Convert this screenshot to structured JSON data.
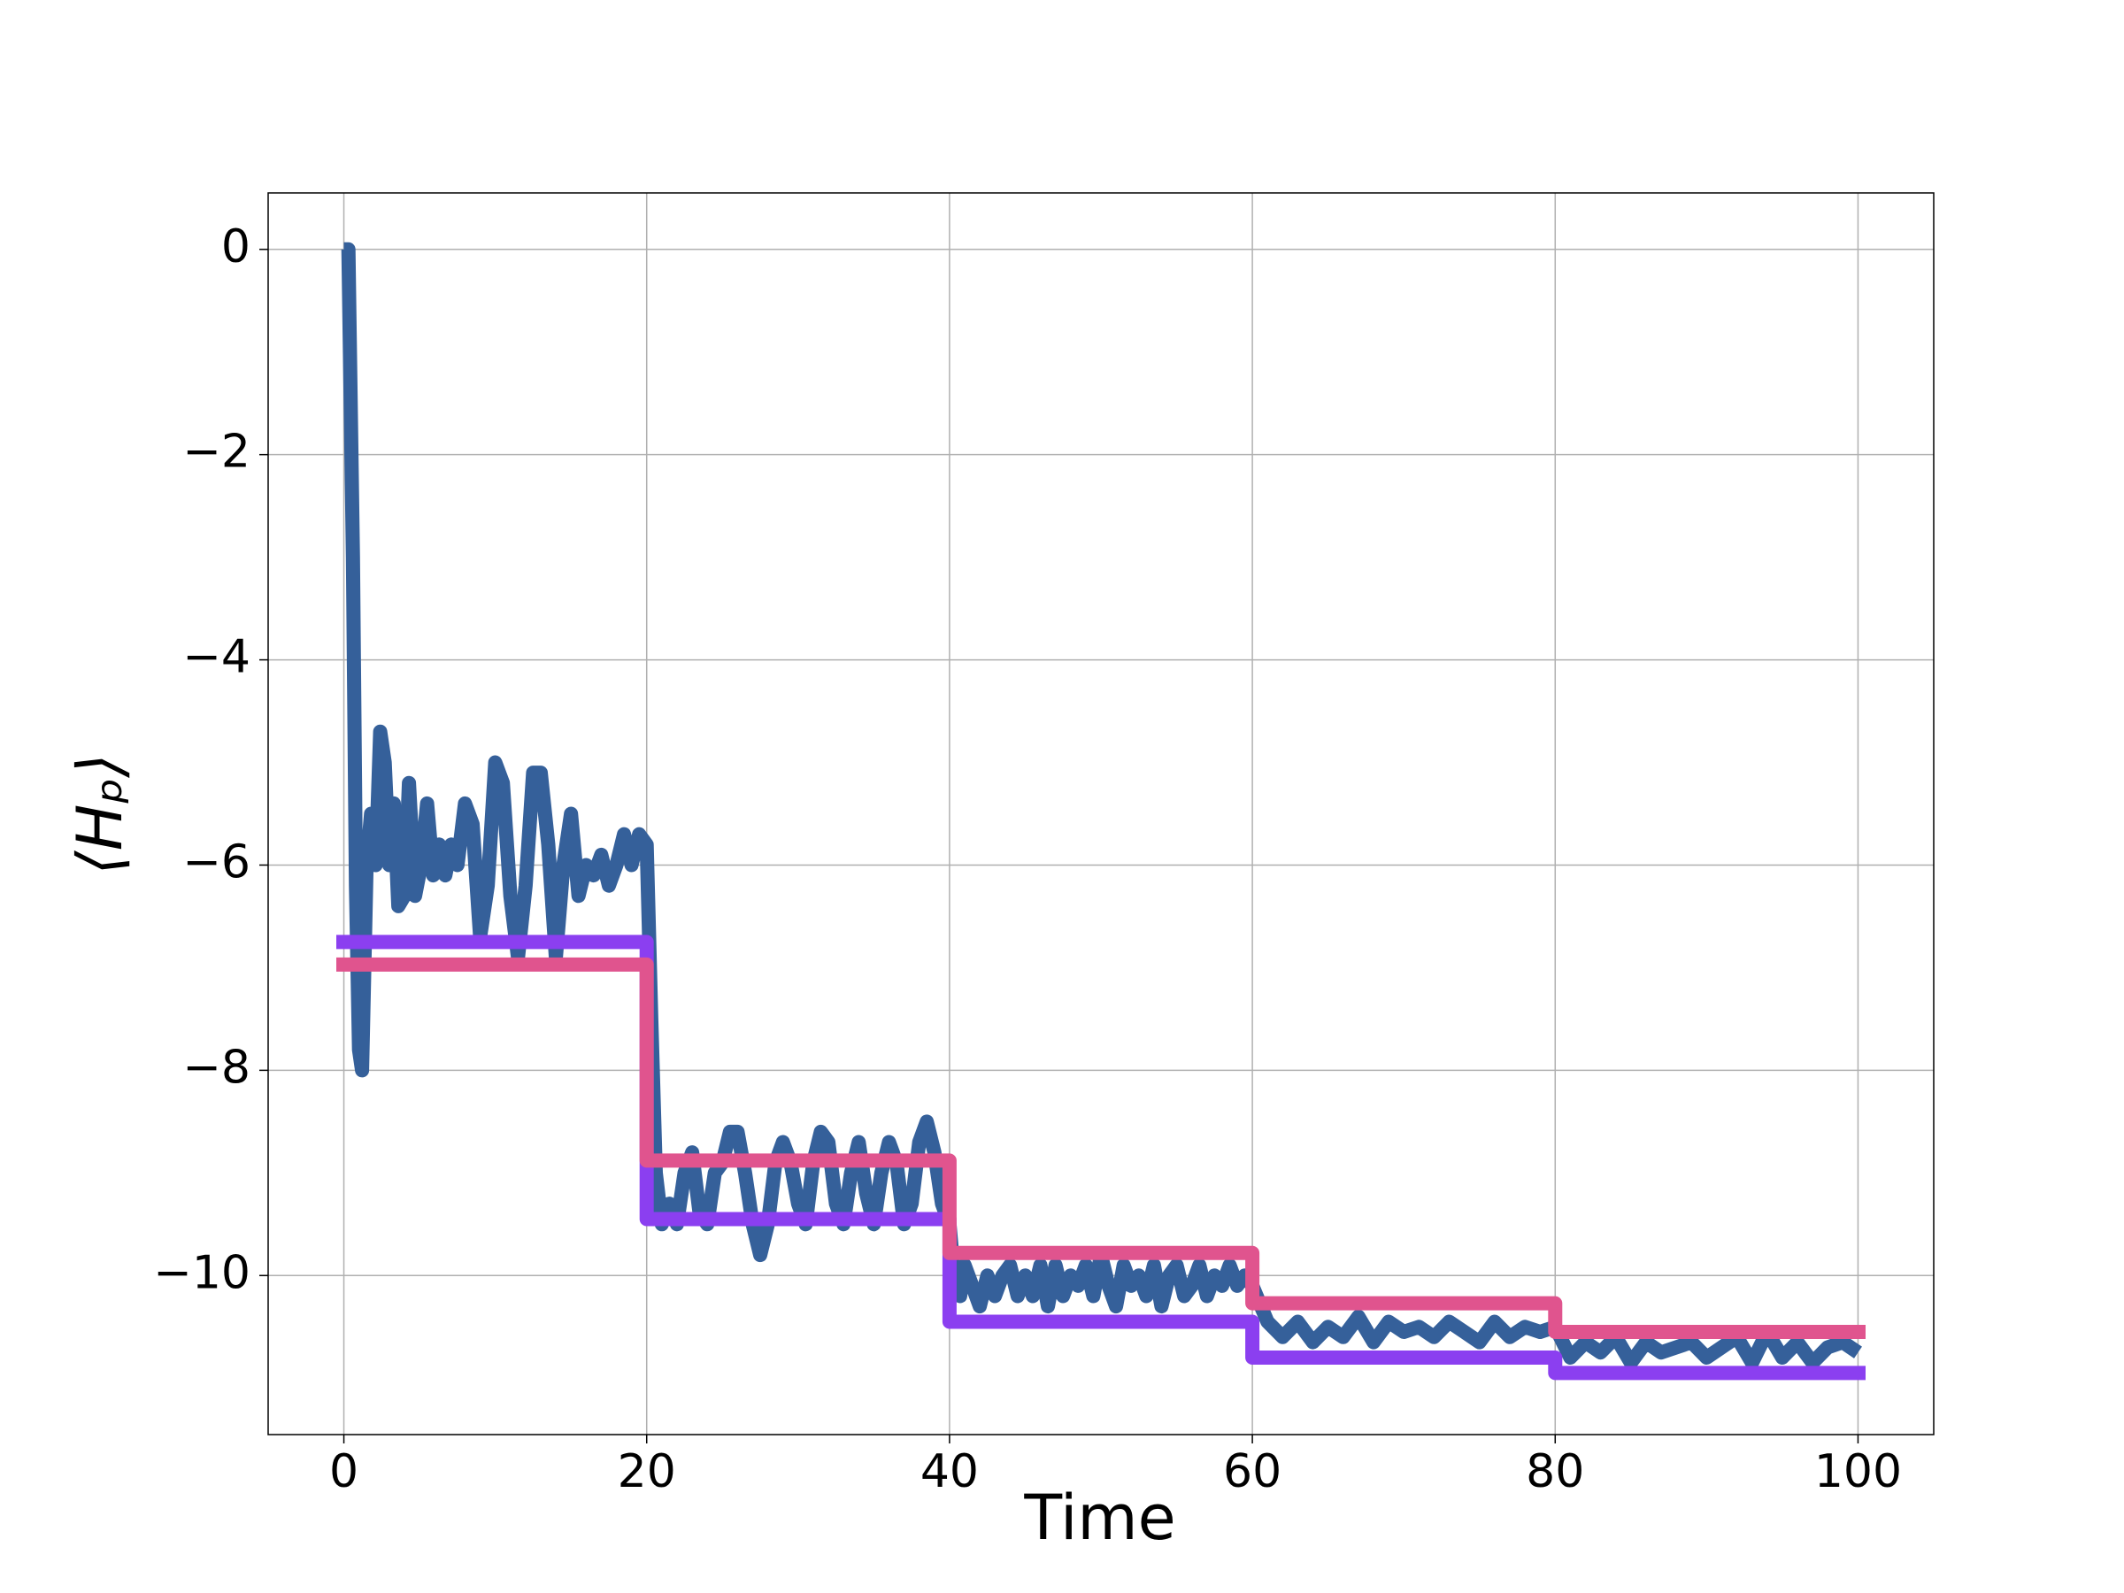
{
  "chart_data": {
    "type": "line",
    "xlabel": "Time",
    "ylabel": "⟨Hₚ⟩",
    "xlim": [
      -5,
      105
    ],
    "ylim": [
      -11.55,
      0.55
    ],
    "xticks": [
      0,
      20,
      40,
      60,
      80,
      100
    ],
    "yticks": [
      0,
      {
        "value": -2,
        "label": "−2"
      },
      {
        "value": -4,
        "label": "−4"
      },
      {
        "value": -6,
        "label": "−6"
      },
      {
        "value": -8,
        "label": "−8"
      },
      {
        "value": -10,
        "label": "−10"
      }
    ],
    "grid": true,
    "series": [
      {
        "color": "#35609a",
        "x": [
          0,
          0.3,
          0.6,
          0.8,
          1.0,
          1.2,
          1.5,
          1.8,
          2.1,
          2.4,
          2.7,
          3.0,
          3.3,
          3.6,
          4.0,
          4.3,
          4.7,
          5.1,
          5.5,
          5.9,
          6.3,
          6.7,
          7.1,
          7.5,
          8.0,
          8.5,
          9.0,
          9.5,
          10.0,
          10.5,
          11.0,
          11.5,
          12.0,
          12.5,
          13.0,
          13.5,
          14.0,
          14.5,
          15.0,
          15.5,
          16.0,
          16.5,
          17.0,
          17.5,
          18.0,
          18.5,
          19.0,
          19.5,
          20.0,
          20.3,
          20.6,
          21,
          21.5,
          22,
          22.5,
          23,
          23.5,
          24,
          24.5,
          25,
          25.5,
          26,
          26.5,
          27,
          27.5,
          28,
          28.5,
          29,
          29.5,
          30,
          30.5,
          31,
          31.5,
          32,
          32.5,
          33,
          33.5,
          34,
          34.5,
          35,
          35.5,
          36,
          36.5,
          37,
          37.5,
          38,
          38.5,
          39,
          39.5,
          40,
          40.3,
          40.7,
          41,
          41.5,
          42,
          42.5,
          43,
          43.5,
          44,
          44.5,
          45,
          45.5,
          46,
          46.5,
          47,
          47.5,
          48,
          48.5,
          49,
          49.5,
          50,
          50.5,
          51,
          51.5,
          52,
          52.5,
          53,
          53.5,
          54,
          54.5,
          55,
          55.5,
          56,
          56.5,
          57,
          57.5,
          58,
          58.5,
          59,
          59.5,
          60,
          61,
          62,
          63,
          64,
          65,
          66,
          67,
          68,
          69,
          70,
          71,
          72,
          73,
          74,
          75,
          76,
          77,
          78,
          79,
          80,
          81,
          82,
          83,
          84,
          85,
          86,
          87,
          88,
          89,
          90,
          91,
          92,
          93,
          94,
          95,
          96,
          97,
          98,
          99,
          100
        ],
        "values": [
          0,
          0,
          -3,
          -6.2,
          -7.8,
          -8,
          -6,
          -5.5,
          -6,
          -4.7,
          -5,
          -6,
          -5.4,
          -6.4,
          -6.3,
          -5.2,
          -6.3,
          -6,
          -5.4,
          -6.1,
          -5.8,
          -6.1,
          -5.8,
          -6,
          -5.4,
          -5.6,
          -6.7,
          -6.2,
          -5,
          -5.2,
          -6.3,
          -6.9,
          -6.2,
          -5.1,
          -5.1,
          -5.8,
          -6.9,
          -6,
          -5.5,
          -6.3,
          -6,
          -6.1,
          -5.9,
          -6.2,
          -6,
          -5.7,
          -6,
          -5.7,
          -5.8,
          -7.5,
          -9.0,
          -9.5,
          -9.3,
          -9.5,
          -9.0,
          -8.8,
          -9.4,
          -9.5,
          -9.0,
          -8.9,
          -8.6,
          -8.6,
          -9.0,
          -9.5,
          -9.8,
          -9.5,
          -8.9,
          -8.7,
          -8.9,
          -9.3,
          -9.5,
          -8.9,
          -8.6,
          -8.7,
          -9.3,
          -9.5,
          -9.0,
          -8.7,
          -9.2,
          -9.5,
          -9.0,
          -8.7,
          -8.9,
          -9.5,
          -9.3,
          -8.7,
          -8.5,
          -8.8,
          -9.3,
          -9.5,
          -10.0,
          -10.2,
          -9.9,
          -10.1,
          -10.3,
          -10.0,
          -10.2,
          -10.0,
          -9.9,
          -10.2,
          -10.0,
          -10.2,
          -9.9,
          -10.3,
          -9.9,
          -10.2,
          -10.0,
          -10.1,
          -9.9,
          -10.2,
          -9.8,
          -10.1,
          -10.3,
          -9.9,
          -10.1,
          -10.0,
          -10.2,
          -9.9,
          -10.3,
          -10.0,
          -9.9,
          -10.2,
          -10.1,
          -9.9,
          -10.2,
          -10.0,
          -10.1,
          -9.9,
          -10.1,
          -10.0,
          -10.1,
          -10.45,
          -10.6,
          -10.45,
          -10.65,
          -10.5,
          -10.6,
          -10.4,
          -10.65,
          -10.45,
          -10.55,
          -10.5,
          -10.6,
          -10.45,
          -10.55,
          -10.65,
          -10.45,
          -10.6,
          -10.5,
          -10.55,
          -10.5,
          -10.8,
          -10.65,
          -10.75,
          -10.6,
          -10.85,
          -10.65,
          -10.75,
          -10.7,
          -10.65,
          -10.8,
          -10.7,
          -10.6,
          -10.85,
          -10.55,
          -10.8,
          -10.65,
          -10.85,
          -10.7,
          -10.65,
          -10.75
        ]
      },
      {
        "color": "#8b3ff0",
        "x": [
          -0.5,
          20,
          20,
          40,
          40,
          60,
          60,
          80,
          80,
          100.5
        ],
        "values": [
          -6.75,
          -6.75,
          -9.45,
          -9.45,
          -10.45,
          -10.45,
          -10.8,
          -10.8,
          -10.95,
          -10.95
        ]
      },
      {
        "color": "#e0548e",
        "x": [
          -0.5,
          20,
          20,
          40,
          40,
          60,
          60,
          80,
          80,
          100.5
        ],
        "values": [
          -6.97,
          -6.97,
          -8.88,
          -8.88,
          -9.78,
          -9.78,
          -10.27,
          -10.27,
          -10.55,
          -10.55
        ]
      }
    ]
  }
}
